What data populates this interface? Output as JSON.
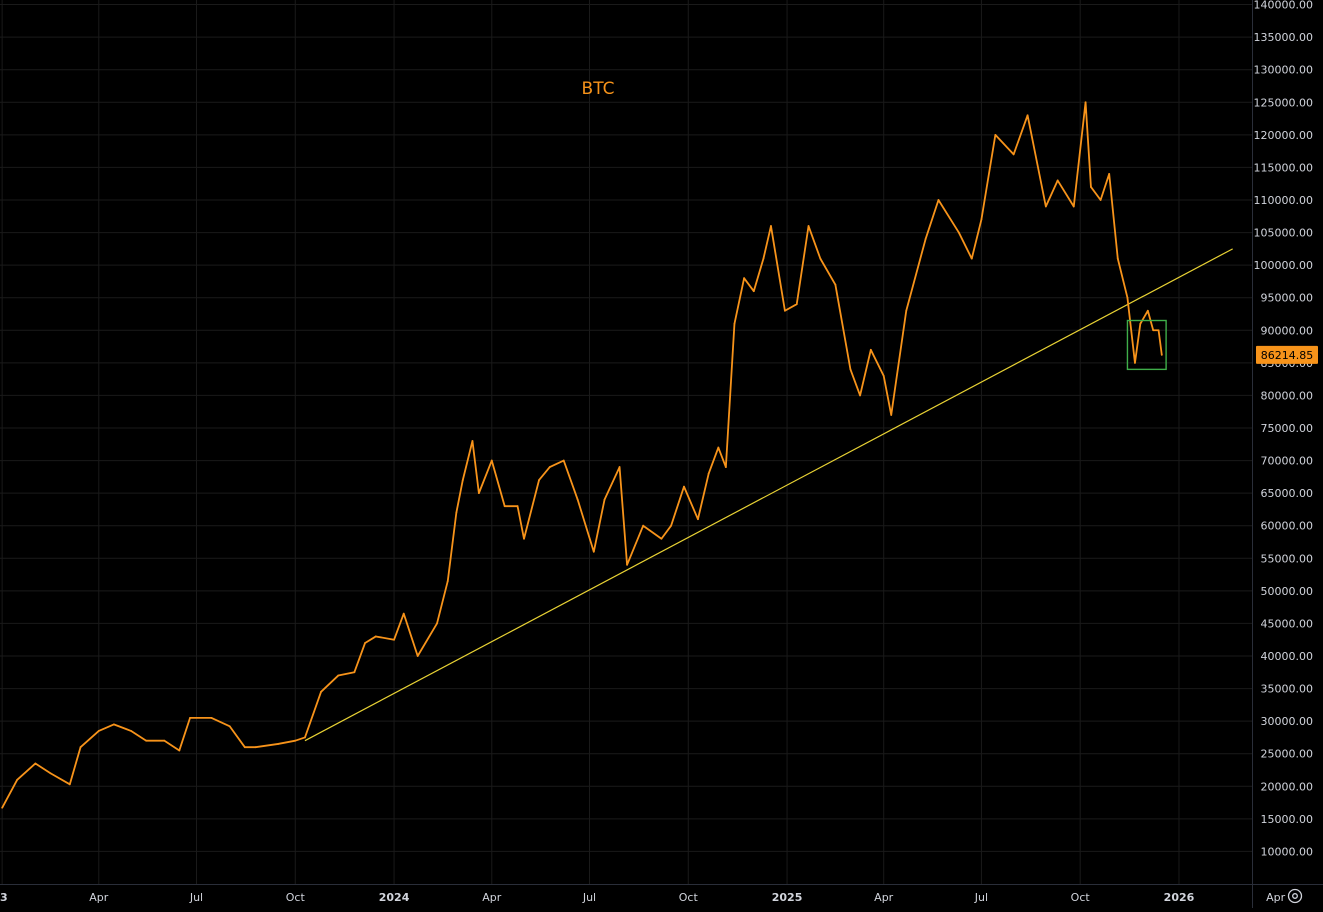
{
  "chart_data": {
    "type": "line",
    "title": "BTC",
    "series": [
      {
        "color": "#f7931a",
        "x": [
          "2023-01-01",
          "2023-01-15",
          "2023-02-01",
          "2023-02-15",
          "2023-03-05",
          "2023-03-15",
          "2023-04-01",
          "2023-04-15",
          "2023-05-01",
          "2023-05-15",
          "2023-06-01",
          "2023-06-15",
          "2023-06-25",
          "2023-07-15",
          "2023-08-01",
          "2023-08-15",
          "2023-08-25",
          "2023-09-15",
          "2023-10-01",
          "2023-10-10",
          "2023-10-25",
          "2023-11-10",
          "2023-11-25",
          "2023-12-05",
          "2023-12-15",
          "2024-01-01",
          "2024-01-10",
          "2024-01-23",
          "2024-02-10",
          "2024-02-20",
          "2024-02-28",
          "2024-03-05",
          "2024-03-14",
          "2024-03-20",
          "2024-04-01",
          "2024-04-13",
          "2024-04-25",
          "2024-05-01",
          "2024-05-15",
          "2024-05-25",
          "2024-06-07",
          "2024-06-20",
          "2024-07-05",
          "2024-07-15",
          "2024-07-29",
          "2024-08-05",
          "2024-08-20",
          "2024-09-06",
          "2024-09-15",
          "2024-09-27",
          "2024-10-10",
          "2024-10-20",
          "2024-10-29",
          "2024-11-05",
          "2024-11-13",
          "2024-11-22",
          "2024-12-01",
          "2024-12-10",
          "2024-12-17",
          "2024-12-30",
          "2025-01-10",
          "2025-01-21",
          "2025-02-01",
          "2025-02-15",
          "2025-03-01",
          "2025-03-10",
          "2025-03-20",
          "2025-04-01",
          "2025-04-08",
          "2025-04-22",
          "2025-05-10",
          "2025-05-22",
          "2025-06-10",
          "2025-06-22",
          "2025-07-01",
          "2025-07-14",
          "2025-07-31",
          "2025-08-13",
          "2025-08-30",
          "2025-09-10",
          "2025-09-25",
          "2025-10-06",
          "2025-10-11",
          "2025-10-20",
          "2025-10-28",
          "2025-11-05",
          "2025-11-14",
          "2025-11-21",
          "2025-11-26",
          "2025-12-03",
          "2025-12-08",
          "2025-12-13",
          "2025-12-16"
        ],
        "y": [
          16700,
          21000,
          23500,
          22000,
          20300,
          26000,
          28500,
          29500,
          28500,
          27000,
          27000,
          25500,
          30500,
          30500,
          29200,
          26000,
          26000,
          26500,
          27000,
          27500,
          34500,
          37000,
          37500,
          42000,
          43000,
          42500,
          46500,
          40000,
          45000,
          51500,
          62000,
          67000,
          73000,
          65000,
          70000,
          63000,
          63000,
          58000,
          67000,
          69000,
          70000,
          64000,
          56000,
          64000,
          69000,
          54000,
          60000,
          58000,
          60000,
          66000,
          61000,
          68000,
          72000,
          69000,
          91000,
          98000,
          96000,
          101000,
          106000,
          93000,
          94000,
          106000,
          101000,
          97000,
          84000,
          80000,
          87000,
          83000,
          77000,
          93000,
          104000,
          110000,
          105000,
          101000,
          107000,
          120000,
          117000,
          123000,
          109000,
          113000,
          109000,
          125000,
          112000,
          110000,
          114000,
          101000,
          95000,
          85000,
          91000,
          93000,
          90000,
          90000,
          86214.85
        ]
      },
      {
        "name": "",
        "color": "#e8d234",
        "x": [
          "2023-10-10",
          "2026-02-20"
        ],
        "y": [
          27000,
          102500
        ]
      }
    ],
    "y_axis": {
      "ticks": [
        "10000.00",
        "15000.00",
        "20000.00",
        "25000.00",
        "30000.00",
        "35000.00",
        "40000.00",
        "45000.00",
        "50000.00",
        "55000.00",
        "60000.00",
        "65000.00",
        "70000.00",
        "75000.00",
        "80000.00",
        "85000.00",
        "90000.00",
        "95000.00",
        "100000.00",
        "105000.00",
        "110000.00",
        "115000.00",
        "120000.00",
        "125000.00",
        "130000.00",
        "135000.00",
        "140000.00"
      ],
      "range": [
        5000,
        140700
      ],
      "position": "right"
    },
    "x_axis": {
      "range": [
        "2022-12-30",
        "2026-03-10"
      ],
      "ticks": [
        {
          "label": "3",
          "date": "2023-01-01",
          "bold": true
        },
        {
          "label": "Apr",
          "date": "2023-04-01",
          "bold": false
        },
        {
          "label": "Jul",
          "date": "2023-07-01",
          "bold": false
        },
        {
          "label": "Oct",
          "date": "2023-10-01",
          "bold": false
        },
        {
          "label": "2024",
          "date": "2024-01-01",
          "bold": true
        },
        {
          "label": "Apr",
          "date": "2024-04-01",
          "bold": false
        },
        {
          "label": "Jul",
          "date": "2024-07-01",
          "bold": false
        },
        {
          "label": "Oct",
          "date": "2024-10-01",
          "bold": false
        },
        {
          "label": "2025",
          "date": "2025-01-01",
          "bold": true
        },
        {
          "label": "Apr",
          "date": "2025-04-01",
          "bold": false
        },
        {
          "label": "Jul",
          "date": "2025-07-01",
          "bold": false
        },
        {
          "label": "Oct",
          "date": "2025-10-01",
          "bold": false
        },
        {
          "label": "2026",
          "date": "2026-01-01",
          "bold": true
        },
        {
          "label": "Apr",
          "date": "2026-04-01",
          "bold": false
        }
      ]
    },
    "last_price": {
      "label": "86214.85",
      "value": 86214.85,
      "color": "#f7931a"
    },
    "annotation_box": {
      "x_start": "2025-11-14",
      "x_end": "2025-12-20",
      "y_low": 84000,
      "y_high": 91500,
      "color": "#3fae4a"
    },
    "grid": true,
    "colors": {
      "background": "#000000",
      "grid": "#1a1a1a",
      "axis_text": "#d1d4dc",
      "title": "#f7931a"
    }
  },
  "settings_icon": "settings-gear-icon"
}
